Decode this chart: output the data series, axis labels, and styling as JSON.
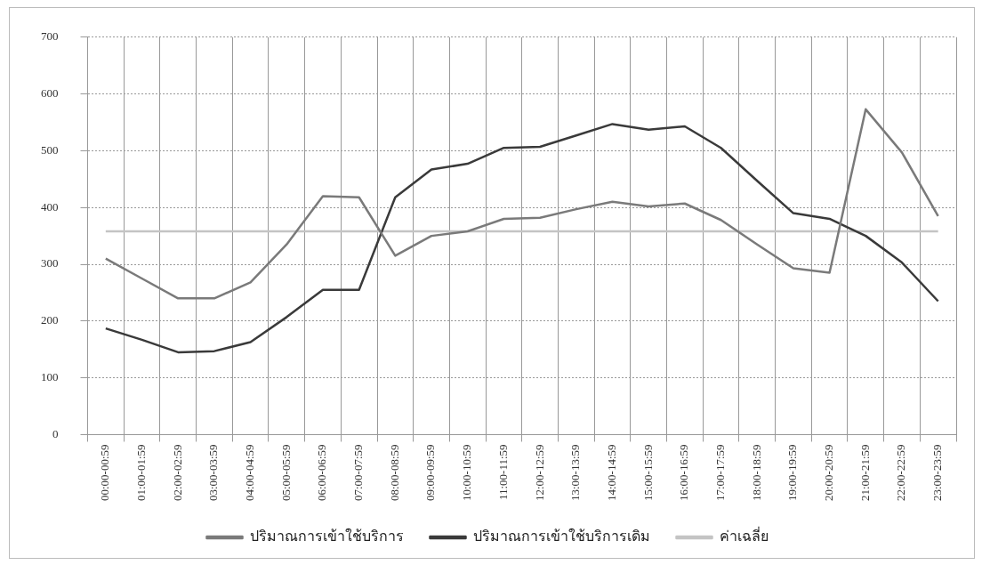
{
  "chart_data": {
    "type": "line",
    "categories": [
      "00:00-00:59",
      "01:00-01:59",
      "02:00-02:59",
      "03:00-03:59",
      "04:00-04:59",
      "05:00-05:59",
      "06:00-06:59",
      "07:00-07:59",
      "08:00-08:59",
      "09:00-09:59",
      "10:00-10:59",
      "11:00-11:59",
      "12:00-12:59",
      "13:00-13:59",
      "14:00-14:59",
      "15:00-15:59",
      "16:00-16:59",
      "17:00-17:59",
      "18:00-18:59",
      "19:00-19:59",
      "20:00-20:59",
      "21:00-21:59",
      "22:00-22:59",
      "23:00-23:59"
    ],
    "series": [
      {
        "name": "ปริมาณการเข้าใช้บริการ",
        "color": "#7a7a7a",
        "values": [
          310,
          275,
          240,
          240,
          268,
          335,
          420,
          418,
          315,
          350,
          358,
          380,
          382,
          397,
          410,
          402,
          407,
          378,
          335,
          293,
          285,
          573,
          497,
          385
        ]
      },
      {
        "name": "ปริมาณการเข้าใช้บริการเดิม",
        "color": "#3a3a3a",
        "values": [
          187,
          167,
          145,
          147,
          163,
          207,
          255,
          255,
          418,
          467,
          477,
          505,
          507,
          527,
          547,
          537,
          543,
          505,
          447,
          390,
          380,
          350,
          303,
          235
        ]
      },
      {
        "name": "ค่าเฉลี่ย",
        "color": "#c4c4c4",
        "values": [
          358,
          358,
          358,
          358,
          358,
          358,
          358,
          358,
          358,
          358,
          358,
          358,
          358,
          358,
          358,
          358,
          358,
          358,
          358,
          358,
          358,
          358,
          358,
          358
        ]
      }
    ],
    "ylim": [
      0,
      700
    ],
    "yticks": [
      0,
      100,
      200,
      300,
      400,
      500,
      600,
      700
    ],
    "grid": true,
    "legend": "bottom",
    "marker": "none",
    "line_style": "solid"
  }
}
